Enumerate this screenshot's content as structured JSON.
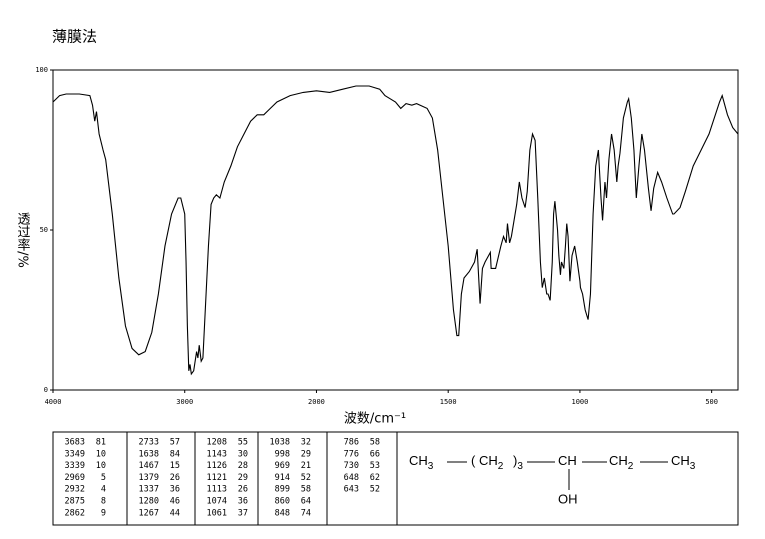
{
  "chart_data": {
    "type": "line",
    "title": "薄膜法",
    "xlabel": "波数/cm⁻¹",
    "ylabel": "透过率/%",
    "color": "#000000",
    "xlim": [
      4000,
      400
    ],
    "xticks": [
      4000,
      3000,
      2000,
      1500,
      1000,
      500
    ],
    "ylim": [
      0,
      100
    ],
    "yticks": [
      0,
      50,
      100
    ],
    "x": [
      4000,
      3950,
      3900,
      3800,
      3720,
      3700,
      3683,
      3670,
      3650,
      3620,
      3600,
      3550,
      3500,
      3450,
      3400,
      3349,
      3300,
      3250,
      3200,
      3150,
      3100,
      3050,
      3030,
      3000,
      2990,
      2980,
      2969,
      2960,
      2950,
      2932,
      2910,
      2900,
      2890,
      2875,
      2862,
      2850,
      2820,
      2800,
      2780,
      2760,
      2733,
      2700,
      2650,
      2600,
      2550,
      2500,
      2450,
      2400,
      2350,
      2300,
      2200,
      2100,
      2000,
      1950,
      1900,
      1850,
      1800,
      1760,
      1740,
      1720,
      1700,
      1680,
      1660,
      1638,
      1620,
      1580,
      1560,
      1540,
      1520,
      1500,
      1480,
      1467,
      1460,
      1450,
      1440,
      1420,
      1400,
      1390,
      1379,
      1370,
      1360,
      1340,
      1337,
      1320,
      1300,
      1290,
      1280,
      1275,
      1267,
      1260,
      1240,
      1230,
      1220,
      1208,
      1200,
      1190,
      1180,
      1170,
      1160,
      1150,
      1143,
      1135,
      1126,
      1121,
      1113,
      1105,
      1100,
      1095,
      1085,
      1080,
      1074,
      1070,
      1061,
      1055,
      1050,
      1045,
      1038,
      1030,
      1020,
      1010,
      1000,
      998,
      990,
      980,
      969,
      960,
      950,
      940,
      930,
      920,
      914,
      905,
      899,
      890,
      880,
      870,
      860,
      855,
      848,
      835,
      820,
      815,
      805,
      795,
      786,
      780,
      776,
      765,
      755,
      740,
      730,
      720,
      705,
      690,
      670,
      648,
      643,
      620,
      600,
      570,
      540,
      510,
      470,
      460,
      440,
      420,
      400
    ],
    "values": [
      90,
      92,
      92.5,
      92.5,
      92,
      89,
      84,
      87,
      80,
      75,
      72,
      55,
      35,
      20,
      13,
      11,
      12,
      18,
      30,
      45,
      55,
      60,
      60,
      55,
      40,
      20,
      6,
      8,
      5,
      6,
      12,
      10,
      14,
      9,
      10,
      20,
      45,
      58,
      60,
      61,
      60,
      65,
      70,
      76,
      80,
      84,
      86,
      86,
      88,
      90,
      92,
      93,
      93.5,
      93,
      94,
      95,
      95,
      94,
      92,
      91,
      90,
      88,
      89.5,
      89,
      89.5,
      88,
      85,
      75,
      60,
      45,
      25,
      17,
      17,
      30,
      35,
      37,
      40,
      44,
      27,
      38,
      40,
      43,
      38,
      38,
      45,
      48,
      46,
      52,
      46,
      48,
      58,
      65,
      60,
      57,
      62,
      75,
      80,
      78,
      60,
      40,
      32,
      35,
      30,
      30,
      28,
      40,
      55,
      59,
      50,
      42,
      36,
      40,
      38,
      45,
      52,
      48,
      34,
      42,
      45,
      40,
      34,
      32,
      30,
      25,
      22,
      30,
      55,
      70,
      75,
      60,
      53,
      65,
      60,
      72,
      80,
      75,
      65,
      70,
      74,
      85,
      90,
      91,
      85,
      75,
      60,
      66,
      70,
      80,
      75,
      63,
      56,
      63,
      68,
      65,
      60,
      55,
      55,
      57,
      62,
      70,
      75,
      80,
      90,
      92,
      86,
      82,
      80
    ]
  },
  "peak_table": [
    [
      [
        3683,
        81
      ],
      [
        3349,
        10
      ],
      [
        3339,
        10
      ],
      [
        2969,
        5
      ],
      [
        2932,
        4
      ],
      [
        2875,
        8
      ],
      [
        2862,
        9
      ]
    ],
    [
      [
        2733,
        57
      ],
      [
        1638,
        84
      ],
      [
        1467,
        15
      ],
      [
        1379,
        26
      ],
      [
        1337,
        36
      ],
      [
        1280,
        46
      ],
      [
        1267,
        44
      ]
    ],
    [
      [
        1208,
        55
      ],
      [
        1143,
        30
      ],
      [
        1126,
        28
      ],
      [
        1121,
        29
      ],
      [
        1113,
        26
      ],
      [
        1074,
        36
      ],
      [
        1061,
        37
      ]
    ],
    [
      [
        1038,
        32
      ],
      [
        998,
        29
      ],
      [
        969,
        21
      ],
      [
        914,
        52
      ],
      [
        899,
        58
      ],
      [
        860,
        64
      ],
      [
        848,
        74
      ]
    ],
    [
      [
        786,
        58
      ],
      [
        776,
        66
      ],
      [
        730,
        53
      ],
      [
        648,
        62
      ],
      [
        643,
        52
      ]
    ]
  ],
  "structure": {
    "groups": [
      {
        "label": "CH",
        "sub": "3"
      },
      {
        "label": "( CH",
        "sub": "2"
      },
      {
        "label": ")",
        "sub": "3"
      },
      {
        "label": "CH"
      },
      {
        "label": "CH",
        "sub": "2"
      },
      {
        "label": "CH",
        "sub": "3"
      }
    ],
    "substituent": "OH"
  }
}
